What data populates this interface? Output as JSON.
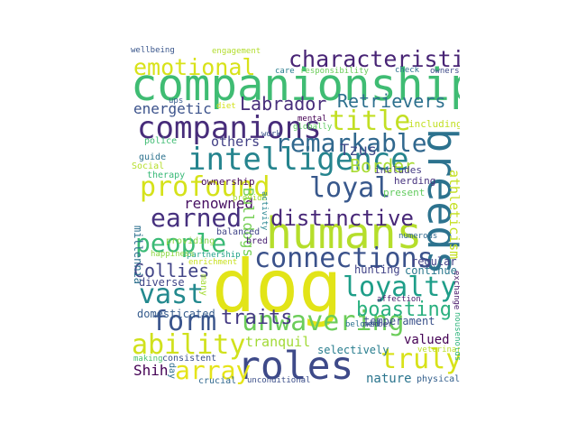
{
  "words": [
    {
      "text": "companionship",
      "color": "#3fbc73"
    },
    {
      "text": "dog",
      "color": "#e2e418"
    },
    {
      "text": "humans",
      "color": "#b5de2b"
    },
    {
      "text": "roles",
      "color": "#3e4a89"
    },
    {
      "text": "breeds",
      "color": "#2c728e"
    },
    {
      "text": "companions",
      "color": "#472c7a"
    },
    {
      "text": "intelligence",
      "color": "#25848e"
    },
    {
      "text": "characteristics",
      "color": "#482475"
    },
    {
      "text": "emotional",
      "color": "#d8e219"
    },
    {
      "text": "title",
      "color": "#c2df23"
    },
    {
      "text": "remarkable",
      "color": "#31688e"
    },
    {
      "text": "profound",
      "color": "#d5e21a"
    },
    {
      "text": "loyal",
      "color": "#38588c"
    },
    {
      "text": "earned",
      "color": "#46307e"
    },
    {
      "text": "distinctive",
      "color": "#482878"
    },
    {
      "text": "people",
      "color": "#3aba76"
    },
    {
      "text": "connections",
      "color": "#3b528b"
    },
    {
      "text": "loyalty",
      "color": "#1f9e89"
    },
    {
      "text": "vast",
      "color": "#23898e"
    },
    {
      "text": "form",
      "color": "#3a548c"
    },
    {
      "text": "unwavering",
      "color": "#6ccd5a"
    },
    {
      "text": "ability",
      "color": "#d0e11c"
    },
    {
      "text": "array",
      "color": "#e5e419"
    },
    {
      "text": "truly",
      "color": "#d8e219"
    },
    {
      "text": "boasting",
      "color": "#2ab07f"
    },
    {
      "text": "traits",
      "color": "#443a83"
    },
    {
      "text": "Collies",
      "color": "#414487"
    },
    {
      "text": "Labrador",
      "color": "#472d7b"
    },
    {
      "text": "Retrievers",
      "color": "#2d708e"
    },
    {
      "text": "Border",
      "color": "#a8db34"
    },
    {
      "text": "energetic",
      "color": "#3b528b"
    },
    {
      "text": "renowned",
      "color": "#471063"
    },
    {
      "text": "others",
      "color": "#424086"
    },
    {
      "text": "Bulldogs",
      "color": "#75d054"
    },
    {
      "text": "athleticism",
      "color": "#c5e021"
    },
    {
      "text": "Tzus",
      "color": "#3e4989"
    },
    {
      "text": "Shih",
      "color": "#440154"
    },
    {
      "text": "tranquil",
      "color": "#a2da37"
    },
    {
      "text": "valued",
      "color": "#440154"
    },
    {
      "text": "nature",
      "color": "#2b758e"
    },
    {
      "text": "temperament",
      "color": "#3b528b"
    },
    {
      "text": "diverse",
      "color": "#404688"
    },
    {
      "text": "domesticated",
      "color": "#365c8d"
    },
    {
      "text": "selectively",
      "color": "#287d8e"
    },
    {
      "text": "hunting",
      "color": "#414287"
    },
    {
      "text": "continue",
      "color": "#2a788e"
    },
    {
      "text": "regular",
      "color": "#424186"
    },
    {
      "text": "herding",
      "color": "#46327e"
    },
    {
      "text": "includes",
      "color": "#443b84"
    },
    {
      "text": "present",
      "color": "#63cb5f"
    },
    {
      "text": "including",
      "color": "#c2df23"
    },
    {
      "text": "ownership",
      "color": "#46085c"
    },
    {
      "text": "guide",
      "color": "#2c728e"
    },
    {
      "text": "police",
      "color": "#3fbc73"
    },
    {
      "text": "Social",
      "color": "#b5de2b"
    },
    {
      "text": "therapy",
      "color": "#38b977"
    },
    {
      "text": "millennia",
      "color": "#2d708e"
    },
    {
      "text": "providing",
      "color": "#8bd646"
    },
    {
      "text": "balanced",
      "color": "#404588"
    },
    {
      "text": "bred",
      "color": "#482071"
    },
    {
      "text": "partnership",
      "color": "#1fa287"
    },
    {
      "text": "happiness",
      "color": "#8fd744"
    },
    {
      "text": "enrichment",
      "color": "#c8e020"
    },
    {
      "text": "many",
      "color": "#a5db36"
    },
    {
      "text": "day",
      "color": "#2e6e8e"
    },
    {
      "text": "consistent",
      "color": "#3b528b"
    },
    {
      "text": "making",
      "color": "#4ac16d"
    },
    {
      "text": "crucial",
      "color": "#31688e"
    },
    {
      "text": "unconditional",
      "color": "#3c4f8a"
    },
    {
      "text": "physical",
      "color": "#35608d"
    },
    {
      "text": "veterinary",
      "color": "#b8de29"
    },
    {
      "text": "households",
      "color": "#2fb47c"
    },
    {
      "text": "exchange",
      "color": "#481769"
    },
    {
      "text": "affection",
      "color": "#481a6c"
    },
    {
      "text": "beloved",
      "color": "#2c728e"
    },
    {
      "text": "member",
      "color": "#414487"
    },
    {
      "text": "numerous",
      "color": "#31688e"
    },
    {
      "text": "provide",
      "color": "#a8db34"
    },
    {
      "text": "activity",
      "color": "#25848e"
    },
    {
      "text": "work",
      "color": "#3b528b"
    },
    {
      "text": "globally",
      "color": "#5ec962"
    },
    {
      "text": "mental",
      "color": "#440154"
    },
    {
      "text": "wellbeing",
      "color": "#39568c"
    },
    {
      "text": "engagement",
      "color": "#b2dd2d"
    },
    {
      "text": "care",
      "color": "#287c8e"
    },
    {
      "text": "responsibility",
      "color": "#6ccd5a"
    },
    {
      "text": "check",
      "color": "#2d708e"
    },
    {
      "text": "owners",
      "color": "#3e4a89"
    },
    {
      "text": "ups",
      "color": "#365c8d"
    },
    {
      "text": "diet",
      "color": "#d2e21b"
    }
  ]
}
